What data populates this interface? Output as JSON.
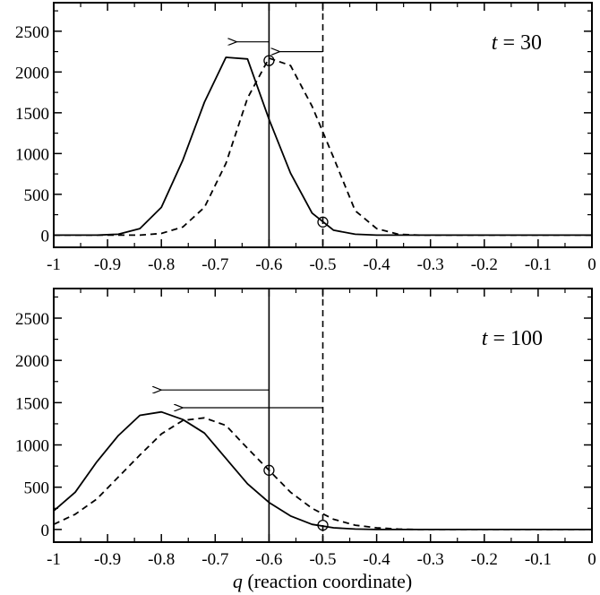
{
  "chart_data": [
    {
      "type": "line",
      "annotation": {
        "var": "t",
        "text": " = 30"
      },
      "xlim": [
        -1,
        0
      ],
      "ylim": [
        -150,
        2850
      ],
      "xticks": [
        -1,
        -0.9,
        -0.8,
        -0.7,
        -0.6,
        -0.5,
        -0.4,
        -0.3,
        -0.2,
        -0.1,
        0
      ],
      "xtick_labels": [
        "-1",
        "-0.9",
        "-0.8",
        "-0.7",
        "-0.6",
        "-0.5",
        "-0.4",
        "-0.3",
        "-0.2",
        "-0.1",
        "0"
      ],
      "yticks": [
        0,
        500,
        1000,
        1500,
        2000,
        2500
      ],
      "ytick_labels": [
        "0",
        "500",
        "1000",
        "1500",
        "2000",
        "2500"
      ],
      "series": [
        {
          "style": "solid",
          "x": [
            -1,
            -0.96,
            -0.92,
            -0.88,
            -0.84,
            -0.8,
            -0.76,
            -0.72,
            -0.68,
            -0.64,
            -0.6,
            -0.56,
            -0.52,
            -0.48,
            -0.44,
            -0.4,
            -0.36,
            -0.32,
            -0.28,
            -0.24,
            -0.2,
            -0.16,
            -0.12,
            -0.08,
            -0.04,
            0
          ],
          "y": [
            0,
            0,
            0,
            10,
            80,
            340,
            920,
            1630,
            2180,
            2160,
            1420,
            760,
            270,
            60,
            10,
            0,
            0,
            0,
            0,
            0,
            0,
            0,
            0,
            0,
            0,
            0
          ]
        },
        {
          "style": "dashed",
          "x": [
            -1,
            -0.96,
            -0.92,
            -0.88,
            -0.84,
            -0.8,
            -0.76,
            -0.72,
            -0.68,
            -0.64,
            -0.6,
            -0.56,
            -0.52,
            -0.48,
            -0.44,
            -0.4,
            -0.36,
            -0.32,
            -0.28,
            -0.24,
            -0.2,
            -0.16,
            -0.12,
            -0.08,
            -0.04,
            0
          ],
          "y": [
            0,
            0,
            0,
            0,
            0,
            20,
            100,
            340,
            880,
            1680,
            2170,
            2080,
            1580,
            950,
            300,
            80,
            10,
            0,
            0,
            0,
            0,
            0,
            0,
            0,
            0,
            0
          ]
        }
      ],
      "vertical_lines": [
        {
          "x": -0.6,
          "style": "solid"
        },
        {
          "x": -0.5,
          "style": "dashed"
        }
      ],
      "markers": [
        {
          "x": -0.6,
          "y": 2140
        },
        {
          "x": -0.5,
          "y": 160
        }
      ],
      "arrows": [
        {
          "from_x": -0.6,
          "to_x": -0.66,
          "y": 2370
        },
        {
          "from_x": -0.5,
          "to_x": -0.58,
          "y": 2250
        }
      ]
    },
    {
      "type": "line",
      "annotation": {
        "var": "t",
        "text": " = 100"
      },
      "xlim": [
        -1,
        0
      ],
      "ylim": [
        -150,
        2850
      ],
      "xticks": [
        -1,
        -0.9,
        -0.8,
        -0.7,
        -0.6,
        -0.5,
        -0.4,
        -0.3,
        -0.2,
        -0.1,
        0
      ],
      "xtick_labels": [
        "-1",
        "-0.9",
        "-0.8",
        "-0.7",
        "-0.6",
        "-0.5",
        "-0.4",
        "-0.3",
        "-0.2",
        "-0.1",
        "0"
      ],
      "yticks": [
        0,
        500,
        1000,
        1500,
        2000,
        2500
      ],
      "ytick_labels": [
        "0",
        "500",
        "1000",
        "1500",
        "2000",
        "2500"
      ],
      "series": [
        {
          "style": "solid",
          "x": [
            -1,
            -0.96,
            -0.92,
            -0.88,
            -0.84,
            -0.8,
            -0.76,
            -0.72,
            -0.68,
            -0.64,
            -0.6,
            -0.56,
            -0.52,
            -0.48,
            -0.44,
            -0.4,
            -0.36,
            -0.32,
            -0.28,
            -0.24,
            -0.2,
            -0.16,
            -0.12,
            -0.08,
            -0.04,
            0
          ],
          "y": [
            220,
            440,
            800,
            1110,
            1350,
            1390,
            1300,
            1140,
            840,
            540,
            320,
            160,
            60,
            20,
            5,
            0,
            0,
            0,
            0,
            0,
            0,
            0,
            0,
            0,
            0,
            0
          ]
        },
        {
          "style": "dashed",
          "x": [
            -1,
            -0.96,
            -0.92,
            -0.88,
            -0.84,
            -0.8,
            -0.76,
            -0.72,
            -0.68,
            -0.64,
            -0.6,
            -0.56,
            -0.52,
            -0.48,
            -0.44,
            -0.4,
            -0.36,
            -0.32,
            -0.28,
            -0.24,
            -0.2,
            -0.16,
            -0.12,
            -0.08,
            -0.04,
            0
          ],
          "y": [
            60,
            180,
            360,
            620,
            880,
            1130,
            1290,
            1320,
            1230,
            960,
            700,
            440,
            250,
            120,
            50,
            20,
            5,
            0,
            0,
            0,
            0,
            0,
            0,
            0,
            0,
            0
          ]
        }
      ],
      "vertical_lines": [
        {
          "x": -0.6,
          "style": "solid"
        },
        {
          "x": -0.5,
          "style": "dashed"
        }
      ],
      "markers": [
        {
          "x": -0.6,
          "y": 700
        },
        {
          "x": -0.5,
          "y": 50
        }
      ],
      "arrows": [
        {
          "from_x": -0.6,
          "to_x": -0.8,
          "y": 1650
        },
        {
          "from_x": -0.5,
          "to_x": -0.76,
          "y": 1440
        }
      ]
    }
  ],
  "xlabel": {
    "var": "q",
    "text": " (reaction coordinate)"
  }
}
